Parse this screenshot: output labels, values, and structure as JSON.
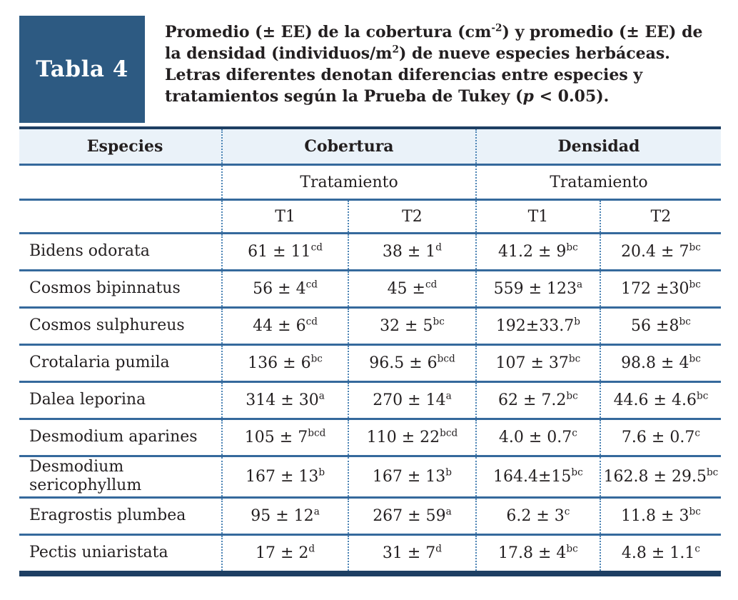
{
  "header": {
    "table_label": "Tabla 4",
    "caption_segments": [
      {
        "t": "Promedio (± EE) de la cobertura (cm"
      },
      {
        "t": "-2",
        "sup": true
      },
      {
        "t": ") y promedio (± EE) de la densidad (individuos/m"
      },
      {
        "t": "2",
        "sup": true
      },
      {
        "t": ") de nueve especies herbáceas. Letras diferentes denotan diferencias entre especies y tratamientos según la Prueba de Tukey ("
      },
      {
        "t": "p",
        "italic": true
      },
      {
        "t": " < 0.05)."
      }
    ]
  },
  "table": {
    "header": {
      "especies": "Especies",
      "cobertura": "Cobertura",
      "densidad": "Densidad",
      "tratamiento": "Tratamiento"
    },
    "sub_cols": [
      "T1",
      "T2",
      "T1",
      "T2"
    ],
    "rows": [
      {
        "species": "Bidens odorata",
        "values": [
          {
            "v": "61 ± 11",
            "sup": "cd"
          },
          {
            "v": "38 ± 1",
            "sup": "d"
          },
          {
            "v": "41.2 ± 9",
            "sup": "bc"
          },
          {
            "v": "20.4 ± 7",
            "sup": "bc"
          }
        ]
      },
      {
        "species": "Cosmos bipinnatus",
        "values": [
          {
            "v": "56 ± 4",
            "sup": "cd"
          },
          {
            "v": "45 ±",
            "sup": "cd"
          },
          {
            "v": "559 ± 123",
            "sup": "a"
          },
          {
            "v": "172 ±30",
            "sup": "bc"
          }
        ]
      },
      {
        "species": "Cosmos sulphureus",
        "values": [
          {
            "v": "44 ± 6",
            "sup": "cd"
          },
          {
            "v": "32 ± 5",
            "sup": "bc"
          },
          {
            "v": "192±33.7",
            "sup": "b"
          },
          {
            "v": "56 ±8",
            "sup": "bc"
          }
        ]
      },
      {
        "species": "Crotalaria pumila",
        "values": [
          {
            "v": "136 ± 6",
            "sup": "bc"
          },
          {
            "v": "96.5 ± 6",
            "sup": "bcd"
          },
          {
            "v": "107 ± 37",
            "sup": "bc"
          },
          {
            "v": "98.8 ± 4",
            "sup": "bc"
          }
        ]
      },
      {
        "species": "Dalea leporina",
        "values": [
          {
            "v": "314 ± 30",
            "sup": "a"
          },
          {
            "v": "270 ± 14",
            "sup": "a"
          },
          {
            "v": "62 ± 7.2",
            "sup": "bc"
          },
          {
            "v": "44.6 ± 4.6",
            "sup": "bc"
          }
        ]
      },
      {
        "species": "Desmodium aparines",
        "values": [
          {
            "v": "105 ± 7",
            "sup": "bcd"
          },
          {
            "v": "110 ± 22",
            "sup": "bcd"
          },
          {
            "v": "4.0 ± 0.7",
            "sup": "c"
          },
          {
            "v": "7.6 ± 0.7",
            "sup": "c"
          }
        ]
      },
      {
        "species": "Desmodium sericophyllum",
        "values": [
          {
            "v": "167 ± 13",
            "sup": "b"
          },
          {
            "v": "167 ± 13",
            "sup": "b"
          },
          {
            "v": "164.4±15",
            "sup": "bc"
          },
          {
            "v": "162.8 ± 29.5",
            "sup": "bc"
          }
        ]
      },
      {
        "species": "Eragrostis plumbea",
        "values": [
          {
            "v": "95 ± 12",
            "sup": "a"
          },
          {
            "v": "267 ± 59",
            "sup": "a"
          },
          {
            "v": "6.2 ± 3",
            "sup": "c"
          },
          {
            "v": "11.8 ± 3",
            "sup": "bc"
          }
        ]
      },
      {
        "species": "Pectis uniaristata",
        "values": [
          {
            "v": "17 ± 2",
            "sup": "d"
          },
          {
            "v": "31 ± 7",
            "sup": "d"
          },
          {
            "v": "17.8 ± 4",
            "sup": "bc"
          },
          {
            "v": "4.8 ± 1.1",
            "sup": "c"
          }
        ]
      }
    ]
  },
  "colors": {
    "label_box_blue": "#2d5a82",
    "outer_border_navy": "#1e3f63",
    "rule_blue": "#35699c",
    "dotted_divider_blue": "#4b83b4",
    "header_band_bg": "#eaf2f9",
    "text": "#231f20"
  }
}
